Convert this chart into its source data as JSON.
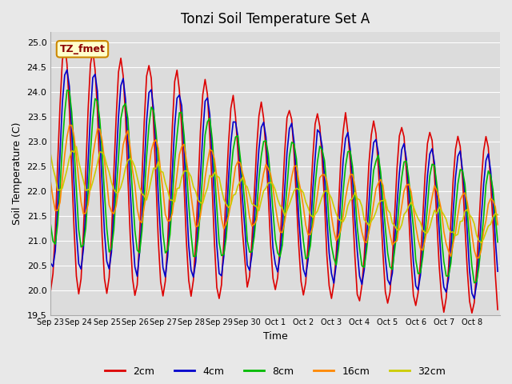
{
  "title": "Tonzi Soil Temperature Set A",
  "xlabel": "Time",
  "ylabel": "Soil Temperature (C)",
  "ylim": [
    19.5,
    25.2
  ],
  "annotation": "TZ_fmet",
  "background_color": "#e8e8e8",
  "plot_bg_color": "#dcdcdc",
  "xtick_labels": [
    "Sep 23",
    "Sep 24",
    "Sep 25",
    "Sep 26",
    "Sep 27",
    "Sep 28",
    "Sep 29",
    "Sep 30",
    "Oct 1",
    "Oct 2",
    "Oct 3",
    "Oct 4",
    "Oct 5",
    "Oct 6",
    "Oct 7",
    "Oct 8"
  ],
  "n_days": 16,
  "pts_per_day": 24,
  "depth_params": {
    "2cm": {
      "amp": 2.2,
      "lag": 0.0,
      "color": "#dd0000"
    },
    "4cm": {
      "amp": 1.8,
      "lag": 1.5,
      "color": "#0000cc"
    },
    "8cm": {
      "amp": 1.4,
      "lag": 3.0,
      "color": "#00bb00"
    },
    "16cm": {
      "amp": 0.8,
      "lag": 5.0,
      "color": "#ff8800"
    },
    "32cm": {
      "amp": 0.35,
      "lag": 8.0,
      "color": "#cccc00"
    }
  }
}
